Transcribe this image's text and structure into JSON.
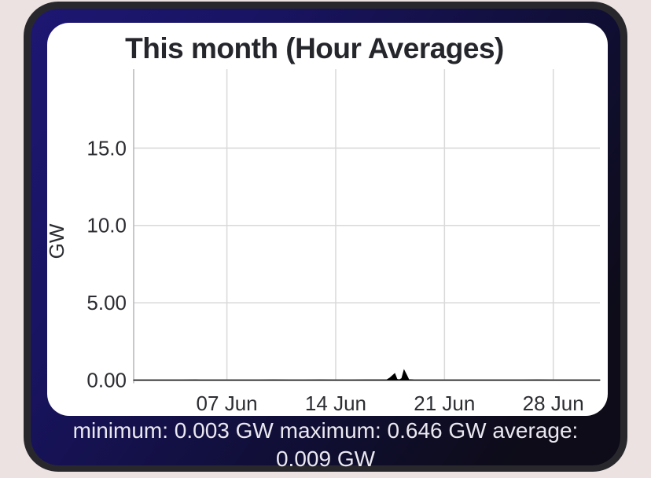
{
  "card": {
    "title": "This month (Hour Averages)"
  },
  "stats": {
    "summary": "minimum: 0.003 GW maximum: 0.646 GW average: 0.009 GW",
    "minimum": "0.003 GW",
    "maximum": "0.646 GW",
    "average": "0.009 GW"
  },
  "chart_data": {
    "type": "area",
    "title": "This month (Hour Averages)",
    "xlabel": "",
    "ylabel": "GW",
    "x_unit": "day of June",
    "xlim": [
      1,
      31
    ],
    "ylim": [
      0,
      20.1
    ],
    "grid": true,
    "legend": false,
    "yticks": [
      {
        "value": 0,
        "label": "0.00"
      },
      {
        "value": 5,
        "label": "5.00"
      },
      {
        "value": 10,
        "label": "10.0"
      },
      {
        "value": 15,
        "label": "15.0"
      }
    ],
    "xticks": [
      {
        "value": 7,
        "label": "07 Jun"
      },
      {
        "value": 14,
        "label": "14 Jun"
      },
      {
        "value": 21,
        "label": "21 Jun"
      },
      {
        "value": 28,
        "label": "28 Jun"
      }
    ],
    "series": [
      {
        "name": "Hour Averages",
        "color": "#000000",
        "fill": "#000000",
        "points": [
          [
            1,
            0.005
          ],
          [
            2,
            0.007
          ],
          [
            3,
            0.005
          ],
          [
            4,
            0.006
          ],
          [
            5,
            0.008
          ],
          [
            6,
            0.006
          ],
          [
            7,
            0.007
          ],
          [
            8,
            0.005
          ],
          [
            9,
            0.006
          ],
          [
            10,
            0.008
          ],
          [
            11,
            0.006
          ],
          [
            12,
            0.007
          ],
          [
            13,
            0.009
          ],
          [
            14,
            0.006
          ],
          [
            15,
            0.007
          ],
          [
            16,
            0.008
          ],
          [
            17,
            0.01
          ],
          [
            17.3,
            0.02
          ],
          [
            17.5,
            0.15
          ],
          [
            17.8,
            0.42
          ],
          [
            17.95,
            0.05
          ],
          [
            18.1,
            0.02
          ],
          [
            18.25,
            0.1
          ],
          [
            18.4,
            0.646
          ],
          [
            18.55,
            0.35
          ],
          [
            18.7,
            0.03
          ],
          [
            19,
            0.009
          ],
          [
            20,
            0.006
          ],
          [
            21,
            0.007
          ],
          [
            22,
            0.005
          ],
          [
            23,
            0.006
          ],
          [
            24,
            0.007
          ],
          [
            25,
            0.005
          ],
          [
            26,
            0.006
          ],
          [
            27,
            0.008
          ],
          [
            28,
            0.006
          ],
          [
            29,
            0.007
          ],
          [
            30,
            0.005
          ],
          [
            31,
            0.005
          ]
        ]
      }
    ],
    "stats": {
      "minimum_gw": 0.003,
      "maximum_gw": 0.646,
      "average_gw": 0.009
    }
  },
  "colors": {
    "page_bg": "#ece2e1",
    "frame": "#28282c",
    "app_gradient_start": "#1e1772",
    "app_gradient_end": "#0d0c18",
    "card_bg": "#ffffff",
    "grid": "#d9d9d9",
    "y_axis_line": "#b6b6ba",
    "x_axis_line": "#8e8e93",
    "series": "#000000",
    "title_text": "#25262b",
    "tick_text": "#2c2d31",
    "stats_text": "#eae8f0"
  }
}
